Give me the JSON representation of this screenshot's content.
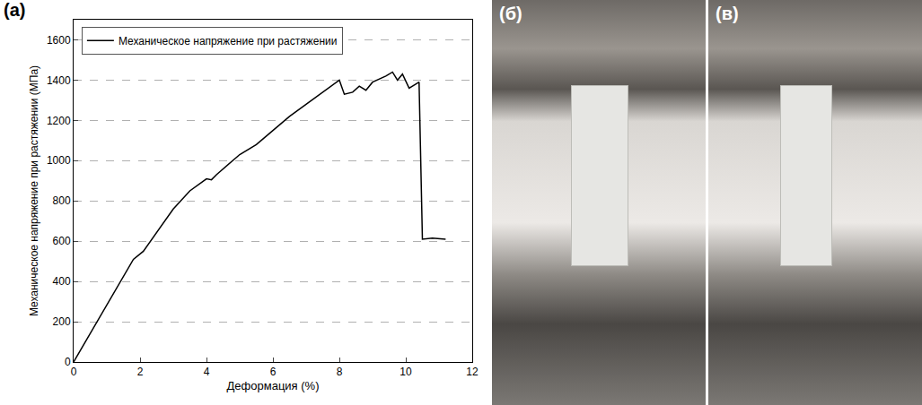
{
  "chart_data": {
    "type": "line",
    "panel": "(a)",
    "x_label": "Деформация (%)",
    "y_label": "Механическое напряжение при растяжении (МПа)",
    "x": [
      0,
      1.8,
      2.1,
      3.0,
      3.5,
      4.0,
      4.15,
      4.3,
      5.0,
      5.5,
      6.0,
      6.5,
      7.0,
      7.5,
      8.0,
      8.15,
      8.4,
      8.6,
      8.8,
      9.0,
      9.4,
      9.6,
      9.75,
      9.9,
      10.1,
      10.4,
      10.5,
      10.8,
      11.2
    ],
    "series": [
      {
        "name": "Механическое напряжение при растяжении",
        "color": "#000000",
        "values": [
          0,
          510,
          550,
          760,
          850,
          910,
          905,
          930,
          1030,
          1080,
          1150,
          1220,
          1280,
          1340,
          1400,
          1330,
          1340,
          1370,
          1350,
          1390,
          1420,
          1440,
          1400,
          1430,
          1360,
          1390,
          610,
          615,
          610
        ]
      }
    ],
    "xlim": [
      0,
      12
    ],
    "xticks": [
      0,
      2,
      4,
      6,
      8,
      10,
      12
    ],
    "ylim": [
      0,
      1700
    ],
    "yticks": [
      0,
      200,
      400,
      600,
      800,
      1000,
      1200,
      1400,
      1600
    ],
    "grid": true,
    "legend": "top-left"
  },
  "photo_panels": [
    {
      "label": "(б)"
    },
    {
      "label": "(в)"
    }
  ]
}
